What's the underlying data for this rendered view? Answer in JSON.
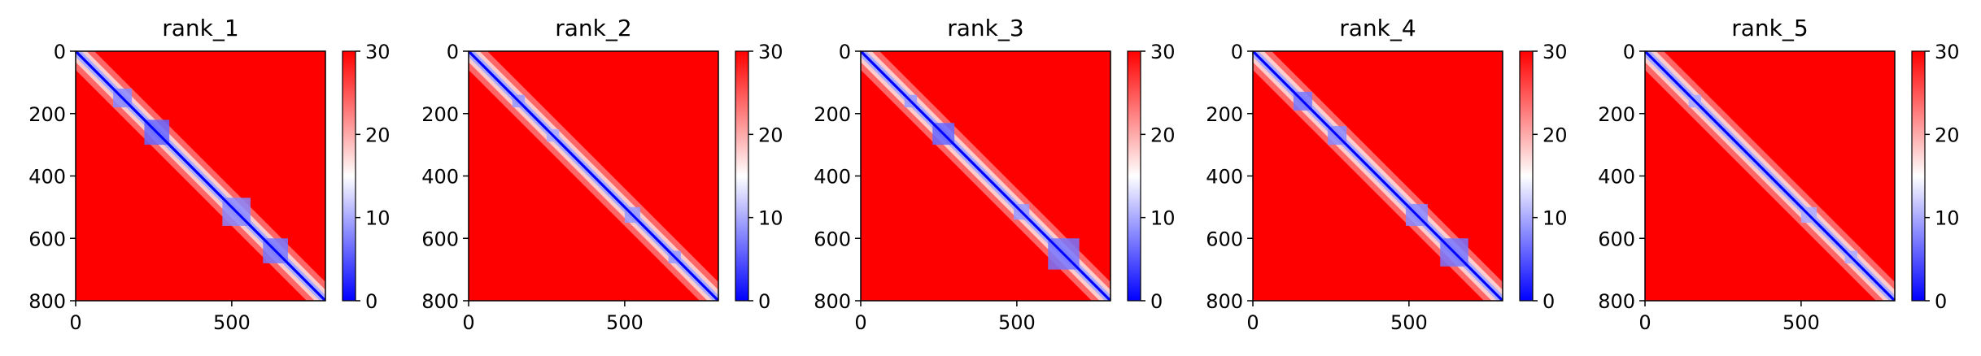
{
  "figure": {
    "background": "#ffffff"
  },
  "colormap": {
    "name": "bwr",
    "low": "#0000ff",
    "mid": "#ffffff",
    "high": "#ff0000",
    "vmin": 0,
    "vmax": 30
  },
  "chart_data": [
    {
      "type": "heatmap",
      "title": "rank_1",
      "xlabel": "",
      "ylabel": "",
      "xlim": [
        0,
        800
      ],
      "ylim": [
        800,
        0
      ],
      "x_ticks": [
        0,
        500
      ],
      "y_ticks": [
        0,
        200,
        400,
        600,
        800
      ],
      "colorbar": {
        "min": 0,
        "max": 30,
        "ticks": [
          0,
          10,
          20,
          30
        ]
      },
      "values_description_free": true,
      "domains": [
        {
          "start": 120,
          "end": 180,
          "value": 8
        },
        {
          "start": 220,
          "end": 300,
          "value": 6
        },
        {
          "start": 470,
          "end": 560,
          "value": 8
        },
        {
          "start": 600,
          "end": 680,
          "value": 7
        }
      ]
    },
    {
      "type": "heatmap",
      "title": "rank_2",
      "xlabel": "",
      "ylabel": "",
      "xlim": [
        0,
        800
      ],
      "ylim": [
        800,
        0
      ],
      "x_ticks": [
        0,
        500
      ],
      "y_ticks": [
        0,
        200,
        400,
        600,
        800
      ],
      "colorbar": {
        "min": 0,
        "max": 30,
        "ticks": [
          0,
          10,
          20,
          30
        ]
      },
      "domains": [
        {
          "start": 140,
          "end": 180,
          "value": 9
        },
        {
          "start": 250,
          "end": 290,
          "value": 10
        },
        {
          "start": 500,
          "end": 550,
          "value": 9
        },
        {
          "start": 640,
          "end": 680,
          "value": 9
        }
      ]
    },
    {
      "type": "heatmap",
      "title": "rank_3",
      "xlabel": "",
      "ylabel": "",
      "xlim": [
        0,
        800
      ],
      "ylim": [
        800,
        0
      ],
      "x_ticks": [
        0,
        500
      ],
      "y_ticks": [
        0,
        200,
        400,
        600,
        800
      ],
      "colorbar": {
        "min": 0,
        "max": 30,
        "ticks": [
          0,
          10,
          20,
          30
        ]
      },
      "domains": [
        {
          "start": 140,
          "end": 180,
          "value": 9
        },
        {
          "start": 230,
          "end": 300,
          "value": 6
        },
        {
          "start": 490,
          "end": 540,
          "value": 9
        },
        {
          "start": 600,
          "end": 700,
          "value": 7
        }
      ]
    },
    {
      "type": "heatmap",
      "title": "rank_4",
      "xlabel": "",
      "ylabel": "",
      "xlim": [
        0,
        800
      ],
      "ylim": [
        800,
        0
      ],
      "x_ticks": [
        0,
        500
      ],
      "y_ticks": [
        0,
        200,
        400,
        600,
        800
      ],
      "colorbar": {
        "min": 0,
        "max": 30,
        "ticks": [
          0,
          10,
          20,
          30
        ]
      },
      "domains": [
        {
          "start": 130,
          "end": 190,
          "value": 7
        },
        {
          "start": 240,
          "end": 300,
          "value": 8
        },
        {
          "start": 490,
          "end": 560,
          "value": 8
        },
        {
          "start": 600,
          "end": 690,
          "value": 7
        }
      ]
    },
    {
      "type": "heatmap",
      "title": "rank_5",
      "xlabel": "",
      "ylabel": "",
      "xlim": [
        0,
        800
      ],
      "ylim": [
        800,
        0
      ],
      "x_ticks": [
        0,
        500
      ],
      "y_ticks": [
        0,
        200,
        400,
        600,
        800
      ],
      "colorbar": {
        "min": 0,
        "max": 30,
        "ticks": [
          0,
          10,
          20,
          30
        ]
      },
      "domains": [
        {
          "start": 140,
          "end": 180,
          "value": 10
        },
        {
          "start": 500,
          "end": 550,
          "value": 10
        },
        {
          "start": 640,
          "end": 680,
          "value": 10
        }
      ]
    }
  ]
}
